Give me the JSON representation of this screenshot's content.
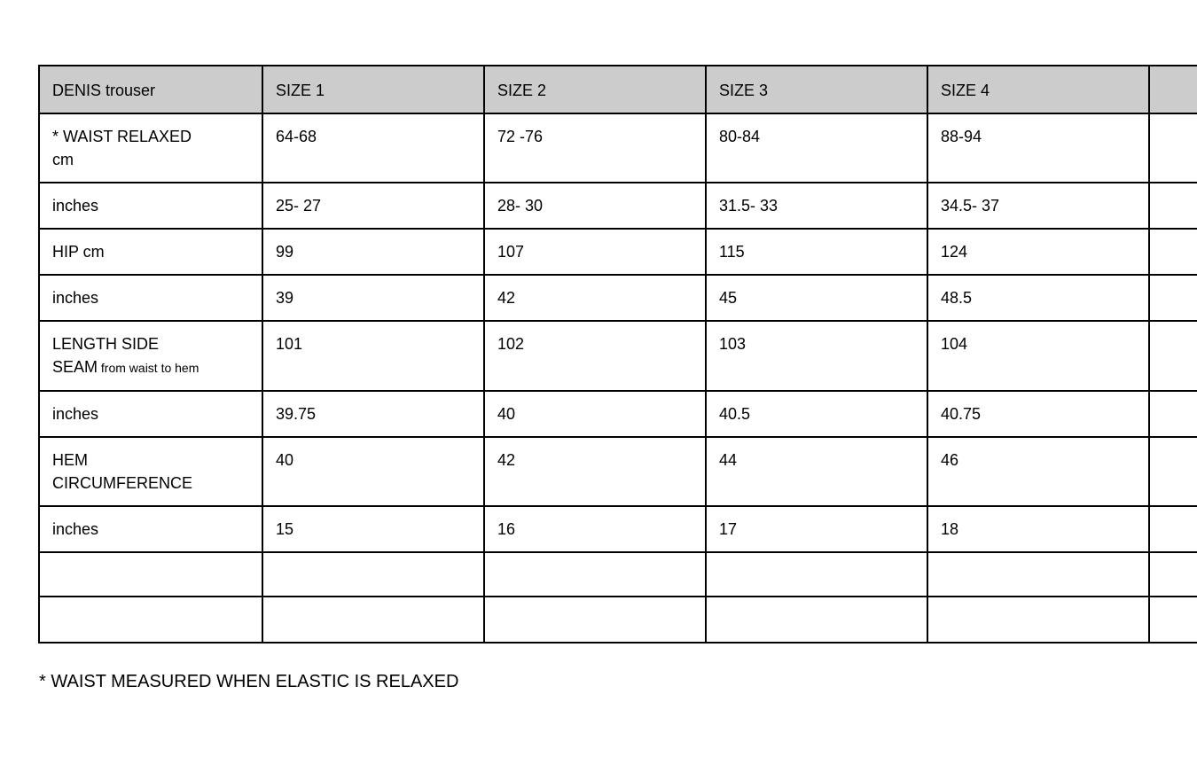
{
  "table": {
    "title_cell": "DENIS trouser",
    "header_bg": "#cccccc",
    "border_color": "#000000",
    "columns": [
      "SIZE 1",
      "SIZE 2",
      "SIZE 3",
      "SIZE 4"
    ],
    "rows": [
      {
        "label_lines": [
          "* WAIST RELAXED",
          "cm"
        ],
        "sub": "",
        "values": [
          "64-68",
          "72 -76",
          "80-84",
          "88-94"
        ]
      },
      {
        "label_lines": [
          "inches"
        ],
        "sub": "",
        "values": [
          "25- 27",
          "28- 30",
          "31.5- 33",
          "34.5- 37"
        ]
      },
      {
        "label_lines": [
          "HIP cm"
        ],
        "sub": "",
        "values": [
          "99",
          "107",
          "115",
          "124"
        ]
      },
      {
        "label_lines": [
          "inches"
        ],
        "sub": "",
        "values": [
          "39",
          "42",
          "45",
          "48.5"
        ]
      },
      {
        "label_lines": [
          "LENGTH SIDE",
          "SEAM"
        ],
        "sub": "from waist to hem",
        "values": [
          "101",
          "102",
          "103",
          "104"
        ]
      },
      {
        "label_lines": [
          "inches"
        ],
        "sub": "",
        "values": [
          "39.75",
          "40",
          "40.5",
          "40.75"
        ]
      },
      {
        "label_lines": [
          "HEM",
          "CIRCUMFERENCE"
        ],
        "sub": "",
        "values": [
          "40",
          "42",
          "44",
          "46"
        ]
      },
      {
        "label_lines": [
          "inches"
        ],
        "sub": "",
        "values": [
          "15",
          "16",
          "17",
          "18"
        ]
      },
      {
        "label_lines": [],
        "sub": "",
        "values": [
          "",
          "",
          "",
          ""
        ]
      },
      {
        "label_lines": [],
        "sub": "",
        "values": [
          "",
          "",
          "",
          ""
        ]
      }
    ]
  },
  "footnote": "* WAIST MEASURED WHEN ELASTIC IS RELAXED"
}
